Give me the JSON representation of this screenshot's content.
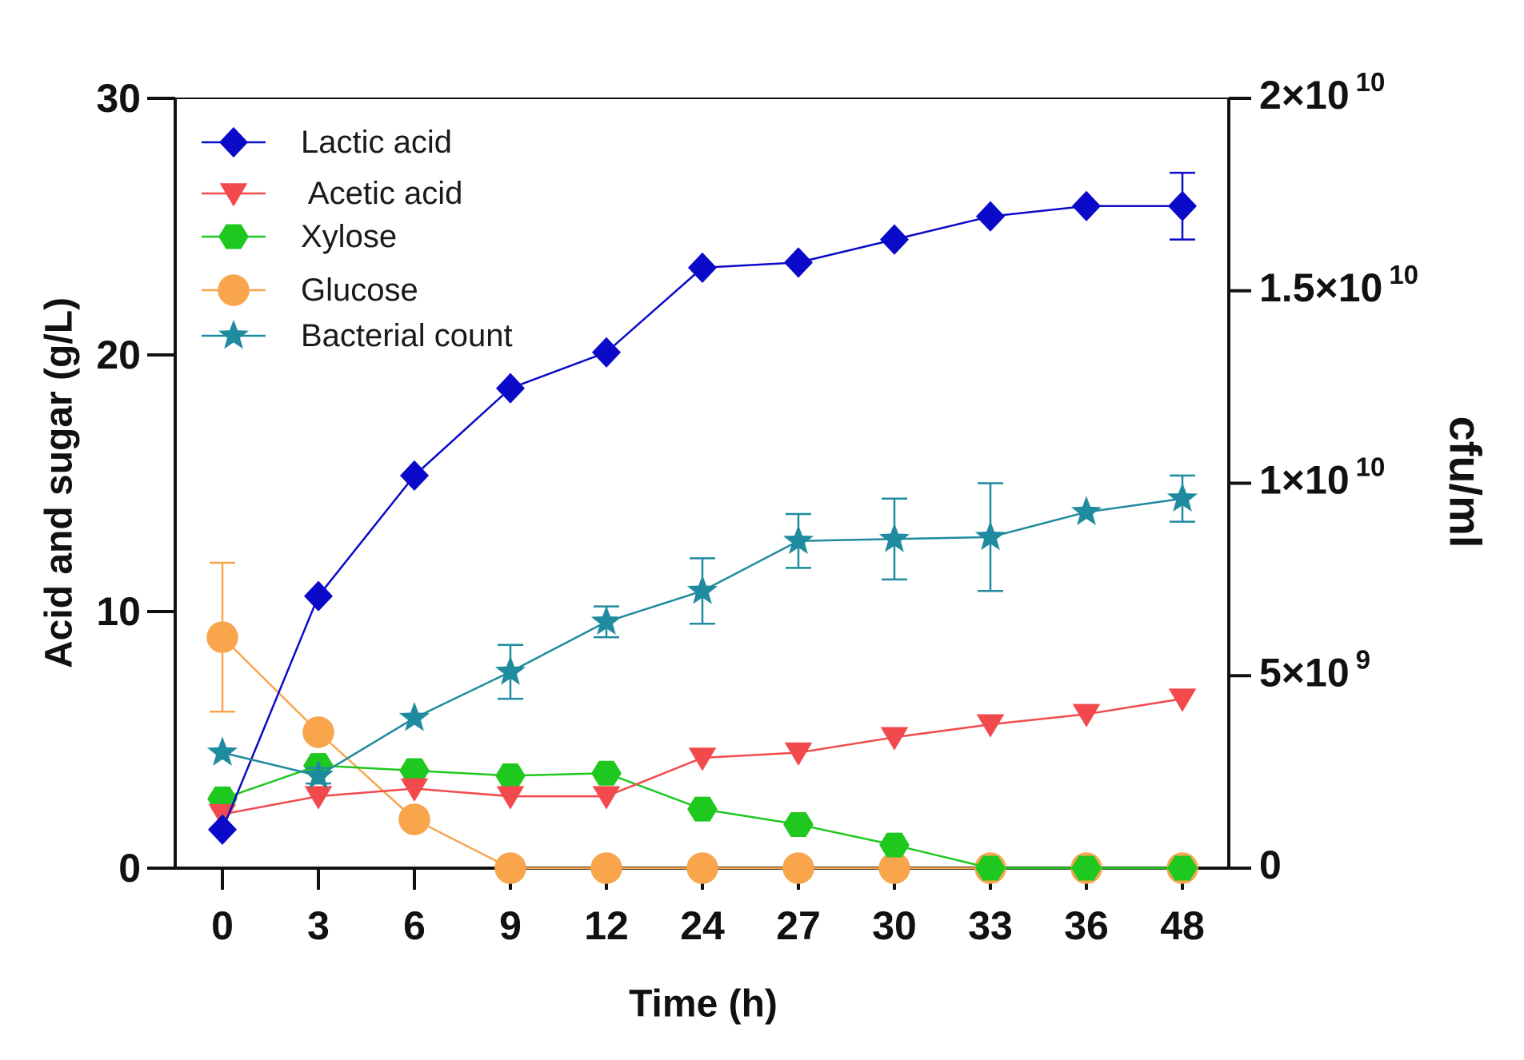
{
  "chart_data": {
    "type": "line",
    "title": "",
    "xlabel": "Time (h)",
    "ylabel": "Acid and sugar (g/L)",
    "ylabel_right": "cfu/ml",
    "categories": [
      "0",
      "3",
      "6",
      "9",
      "12",
      "24",
      "27",
      "30",
      "33",
      "36",
      "48"
    ],
    "ylim": [
      0,
      30
    ],
    "ylim_right": [
      0,
      20000000000
    ],
    "yticks": [
      {
        "value": 0,
        "label": "0"
      },
      {
        "value": 10,
        "label": "10"
      },
      {
        "value": 20,
        "label": "20"
      },
      {
        "value": 30,
        "label": "30"
      }
    ],
    "yticks_right": [
      {
        "value": 0,
        "base": "0"
      },
      {
        "value": 5000000000,
        "base": "5×10",
        "exp": "9"
      },
      {
        "value": 10000000000,
        "base": "1×10",
        "exp": "10"
      },
      {
        "value": 15000000000,
        "base": "1.5×10",
        "exp": "10"
      },
      {
        "value": 20000000000,
        "base": "2×10",
        "exp": "10"
      }
    ],
    "grid": false,
    "legend": "top-left",
    "series": [
      {
        "name": "Lactic acid",
        "color": "#0a0ac8",
        "marker": "diamond",
        "axis": "left",
        "values": [
          1.5,
          10.6,
          15.3,
          18.7,
          20.1,
          23.4,
          23.6,
          24.5,
          25.4,
          25.8,
          25.8
        ],
        "errors": [
          null,
          null,
          null,
          null,
          null,
          null,
          null,
          null,
          null,
          null,
          1.3
        ]
      },
      {
        "name": " Acetic acid",
        "color": "#f24a4c",
        "marker": "triangle-down",
        "axis": "left",
        "values": [
          2.1,
          2.8,
          3.1,
          2.8,
          2.8,
          4.3,
          4.5,
          5.1,
          5.6,
          6.0,
          6.6
        ],
        "errors": [
          null,
          null,
          null,
          null,
          null,
          null,
          null,
          null,
          null,
          null,
          null
        ]
      },
      {
        "name": "Xylose",
        "color": "#1fc81f",
        "marker": "hexagon",
        "axis": "left",
        "values": [
          2.7,
          4.0,
          3.8,
          3.6,
          3.7,
          2.3,
          1.7,
          0.9,
          0,
          0,
          0
        ],
        "errors": [
          null,
          null,
          null,
          null,
          null,
          null,
          null,
          null,
          null,
          null,
          null
        ]
      },
      {
        "name": "Glucose",
        "color": "#f8a54c",
        "marker": "circle",
        "axis": "left",
        "values": [
          9.0,
          5.3,
          1.9,
          0,
          0,
          0,
          0,
          0,
          0,
          0,
          0
        ],
        "errors": [
          2.9,
          null,
          null,
          null,
          null,
          null,
          null,
          null,
          null,
          null,
          null
        ]
      },
      {
        "name": "Bacterial count",
        "color": "#1f8b9e",
        "marker": "star",
        "axis": "right",
        "values": [
          3000000000,
          2400000000,
          3900000000,
          5100000000,
          6400000000,
          7200000000,
          8500000000,
          8550000000,
          8600000000,
          9250000000,
          9600000000
        ],
        "errors": [
          null,
          200000000,
          null,
          700000000,
          400000000,
          850000000,
          700000000,
          1050000000,
          1400000000,
          null,
          600000000
        ]
      }
    ]
  }
}
